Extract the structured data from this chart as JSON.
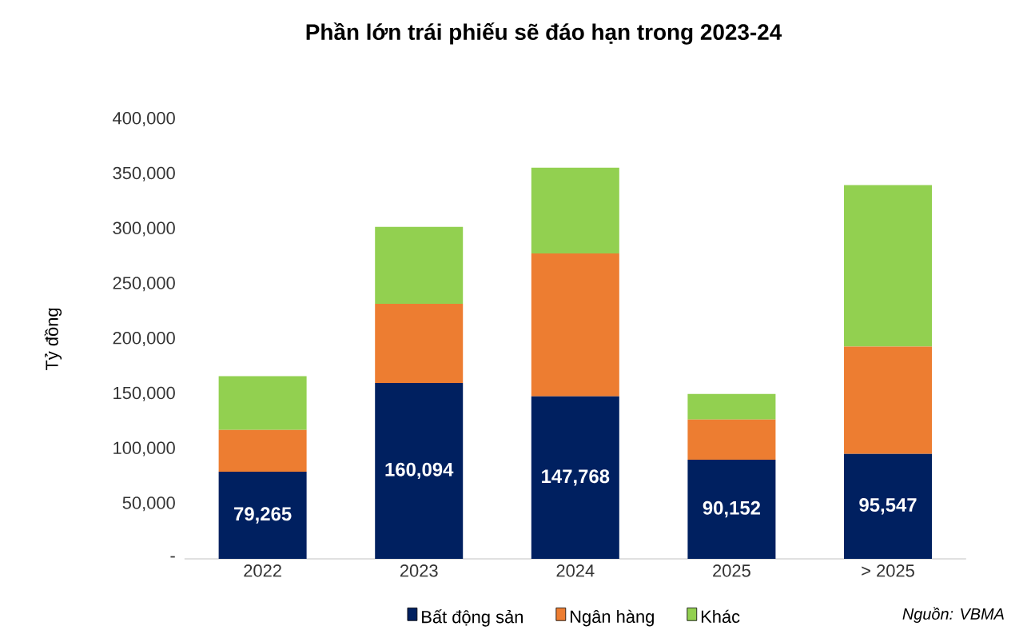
{
  "chart_data": {
    "type": "bar",
    "stacked": true,
    "title": "Phần lớn trái phiếu sẽ đáo hạn trong 2023-24",
    "ylabel": "Tỷ đồng",
    "categories": [
      "2022",
      "2023",
      "2024",
      "2025",
      "> 2025"
    ],
    "series": [
      {
        "name": "Bất động sản",
        "color": "#002060",
        "values": [
          79265,
          160094,
          147768,
          90152,
          95547
        ],
        "value_labels": [
          "79,265",
          "160,094",
          "147,768",
          "90,152",
          "95,547"
        ]
      },
      {
        "name": "Ngân hàng",
        "color": "#ed7d31",
        "values": [
          38000,
          72000,
          130000,
          36500,
          97500
        ]
      },
      {
        "name": "Khác",
        "color": "#92d050",
        "values": [
          49000,
          70000,
          78000,
          23300,
          147000
        ]
      }
    ],
    "ylim": [
      0,
      400000
    ],
    "yticks": [
      {
        "value": 0,
        "label": "-"
      },
      {
        "value": 50000,
        "label": "50,000"
      },
      {
        "value": 100000,
        "label": "100,000"
      },
      {
        "value": 150000,
        "label": "150,000"
      },
      {
        "value": 200000,
        "label": "200,000"
      },
      {
        "value": 250000,
        "label": "250,000"
      },
      {
        "value": 300000,
        "label": "300,000"
      },
      {
        "value": 350000,
        "label": "350,000"
      },
      {
        "value": 400000,
        "label": "400,000"
      }
    ],
    "grid": false,
    "legend": "bottom",
    "annotations": [
      "Nguồn: VBMA"
    ]
  }
}
